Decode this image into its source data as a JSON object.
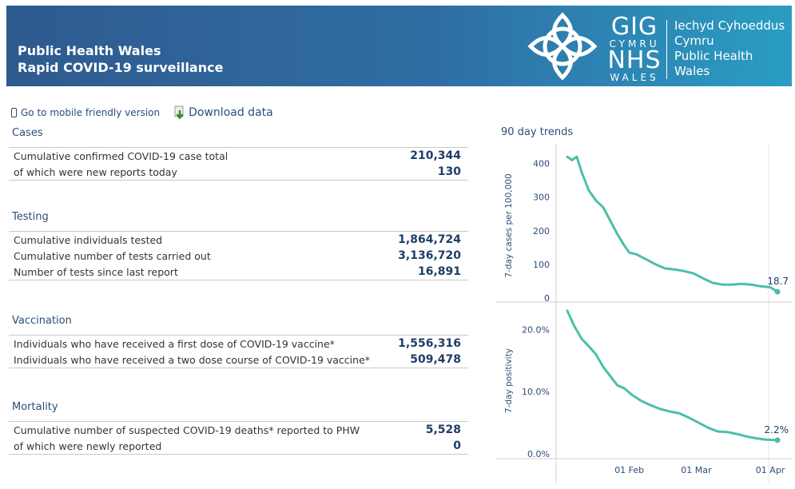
{
  "header": {
    "title_line1": "Public Health Wales",
    "title_line2": "Rapid COVID-19 surveillance",
    "logo": {
      "gig": "GIG",
      "cymru": "CYMRU",
      "nhs": "NHS",
      "wales": "WALES",
      "name_line1": "Iechyd Cyhoeddus",
      "name_line2": "Cymru",
      "name_line3": "Public Health",
      "name_line4": "Wales"
    }
  },
  "links": {
    "mobile": "Go to mobile friendly version",
    "download": "Download data"
  },
  "sections": {
    "cases": {
      "title": "Cases",
      "rows": [
        {
          "label": "Cumulative confirmed COVID-19 case total",
          "value": "210,344"
        },
        {
          "label": "of which were new reports today",
          "value": "130"
        }
      ]
    },
    "testing": {
      "title": "Testing",
      "rows": [
        {
          "label": "Cumulative individuals tested",
          "value": "1,864,724"
        },
        {
          "label": "Cumulative number of tests carried out",
          "value": "3,136,720"
        },
        {
          "label": "Number of tests since last report",
          "value": "16,891"
        }
      ]
    },
    "vaccination": {
      "title": "Vaccination",
      "rows": [
        {
          "label": "Individuals who have received a first dose of COVID-19 vaccine*",
          "value": "1,556,316"
        },
        {
          "label": "Individuals who have received a two dose course of COVID-19 vaccine*",
          "value": "509,478"
        }
      ]
    },
    "mortality": {
      "title": "Mortality",
      "rows": [
        {
          "label": "Cumulative number of suspected COVID-19 deaths* reported to PHW",
          "value": "5,528"
        },
        {
          "label": "of which were newly reported",
          "value": "0"
        }
      ]
    }
  },
  "colors": {
    "line": "#4bbfaa",
    "header_dark": "#2f5a8e",
    "header_light": "#2a9dc2",
    "value": "#1f3d67",
    "title": "#2b4d7a"
  },
  "chart_data": {
    "title": "90 day trends",
    "type": "line",
    "x_ticks": [
      "01 Feb",
      "01 Mar",
      "01 Apr"
    ],
    "panels": [
      {
        "ylabel": "7-day cases per 100,000",
        "ylim": [
          0,
          430
        ],
        "y_ticks": [
          "0",
          "100",
          "200",
          "300",
          "400"
        ],
        "y_tick_values": [
          0,
          100,
          200,
          300,
          400
        ],
        "end_label": "18.7",
        "x": [
          "2021-01-06",
          "2021-01-08",
          "2021-01-10",
          "2021-01-12",
          "2021-01-15",
          "2021-01-18",
          "2021-01-21",
          "2021-01-24",
          "2021-01-27",
          "2021-01-30",
          "2021-02-01",
          "2021-02-04",
          "2021-02-08",
          "2021-02-12",
          "2021-02-16",
          "2021-02-20",
          "2021-02-24",
          "2021-02-28",
          "2021-03-04",
          "2021-03-08",
          "2021-03-12",
          "2021-03-16",
          "2021-03-20",
          "2021-03-24",
          "2021-03-28",
          "2021-04-01",
          "2021-04-04"
        ],
        "y": [
          420,
          410,
          420,
          375,
          320,
          290,
          270,
          230,
          190,
          155,
          135,
          130,
          115,
          100,
          88,
          85,
          80,
          73,
          58,
          45,
          40,
          40,
          42,
          40,
          35,
          32,
          18.7
        ]
      },
      {
        "ylabel": "7-day positivity",
        "ylim": [
          0,
          23.5
        ],
        "y_ticks": [
          "0.0%",
          "10.0%",
          "20.0%"
        ],
        "y_tick_values": [
          0,
          10,
          20
        ],
        "end_label": "2.2%",
        "x": [
          "2021-01-06",
          "2021-01-09",
          "2021-01-12",
          "2021-01-15",
          "2021-01-18",
          "2021-01-21",
          "2021-01-24",
          "2021-01-27",
          "2021-01-30",
          "2021-02-02",
          "2021-02-06",
          "2021-02-10",
          "2021-02-14",
          "2021-02-18",
          "2021-02-22",
          "2021-02-26",
          "2021-03-02",
          "2021-03-06",
          "2021-03-10",
          "2021-03-14",
          "2021-03-18",
          "2021-03-22",
          "2021-03-26",
          "2021-03-30",
          "2021-04-04"
        ],
        "y": [
          23,
          20.5,
          18.5,
          17.3,
          16,
          14,
          12.5,
          11,
          10.5,
          9.5,
          8.5,
          7.8,
          7.2,
          6.8,
          6.5,
          5.8,
          5,
          4.2,
          3.6,
          3.5,
          3.2,
          2.8,
          2.5,
          2.3,
          2.2
        ]
      }
    ]
  }
}
